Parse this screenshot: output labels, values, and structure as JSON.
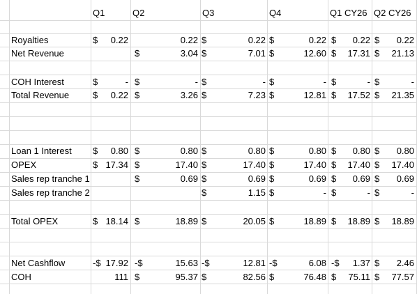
{
  "columns": [
    "Q1",
    "Q2",
    "Q3",
    "Q4",
    "Q1 CY26",
    "Q2 CY26"
  ],
  "rows": [
    {
      "label": "Royalties",
      "q1_cur": "$",
      "q1": "0.22",
      "q2_cur": "",
      "q2": "0.22",
      "q3_cur": "$",
      "q3": "0.22",
      "q4_cur": "$",
      "q4": "0.22",
      "c1_cur": "$",
      "c1": "0.22",
      "c2_cur": "$",
      "c2": "0.22"
    },
    {
      "label": "Net Revenue",
      "q1_cur": "",
      "q1": "",
      "q2_cur": "$",
      "q2": "3.04",
      "q3_cur": "$",
      "q3": "7.01",
      "q4_cur": "$",
      "q4": "12.60",
      "c1_cur": "$",
      "c1": "17.31",
      "c2_cur": "$",
      "c2": "21.13"
    },
    {
      "label": "COH Interest",
      "q1_cur": "$",
      "q1": "-",
      "q2_cur": "$",
      "q2": "-",
      "q3_cur": "$",
      "q3": "-",
      "q4_cur": "$",
      "q4": "-",
      "c1_cur": "$",
      "c1": "-",
      "c2_cur": "$",
      "c2": "-"
    },
    {
      "label": "Total Revenue",
      "q1_cur": "$",
      "q1": "0.22",
      "q2_cur": "$",
      "q2": "3.26",
      "q3_cur": "$",
      "q3": "7.23",
      "q4_cur": "$",
      "q4": "12.81",
      "c1_cur": "$",
      "c1": "17.52",
      "c2_cur": "$",
      "c2": "21.35"
    },
    {
      "label": "Loan 1 Interest",
      "q1_cur": "$",
      "q1": "0.80",
      "q2_cur": "$",
      "q2": "0.80",
      "q3_cur": "$",
      "q3": "0.80",
      "q4_cur": "$",
      "q4": "0.80",
      "c1_cur": "$",
      "c1": "0.80",
      "c2_cur": "$",
      "c2": "0.80"
    },
    {
      "label": "OPEX",
      "q1_cur": "$",
      "q1": "17.34",
      "q2_cur": "$",
      "q2": "17.40",
      "q3_cur": "$",
      "q3": "17.40",
      "q4_cur": "$",
      "q4": "17.40",
      "c1_cur": "$",
      "c1": "17.40",
      "c2_cur": "$",
      "c2": "17.40"
    },
    {
      "label": "Sales rep tranche 1",
      "q1_cur": "",
      "q1": "",
      "q2_cur": "$",
      "q2": "0.69",
      "q3_cur": "$",
      "q3": "0.69",
      "q4_cur": "$",
      "q4": "0.69",
      "c1_cur": "$",
      "c1": "0.69",
      "c2_cur": "$",
      "c2": "0.69"
    },
    {
      "label": "Sales rep tranche 2",
      "q1_cur": "",
      "q1": "",
      "q2_cur": "",
      "q2": "",
      "q3_cur": "$",
      "q3": "1.15",
      "q4_cur": "$",
      "q4": "-",
      "c1_cur": "$",
      "c1": "-",
      "c2_cur": "$",
      "c2": "-"
    },
    {
      "label": "Total OPEX",
      "q1_cur": "$",
      "q1": "18.14",
      "q2_cur": "$",
      "q2": "18.89",
      "q3_cur": "$",
      "q3": "20.05",
      "q4_cur": "$",
      "q4": "18.89",
      "c1_cur": "$",
      "c1": "18.89",
      "c2_cur": "$",
      "c2": "18.89"
    },
    {
      "label": "Net Cashflow",
      "q1_cur": "-$",
      "q1": "17.92",
      "q2_cur": "-$",
      "q2": "15.63",
      "q3_cur": "-$",
      "q3": "12.81",
      "q4_cur": "-$",
      "q4": "6.08",
      "c1_cur": "-$",
      "c1": "1.37",
      "c2_cur": "$",
      "c2": "2.46"
    },
    {
      "label": "COH",
      "q1_cur": "",
      "q1": "111",
      "q2_cur": "$",
      "q2": "95.37",
      "q3_cur": "$",
      "q3": "82.56",
      "q4_cur": "$",
      "q4": "76.48",
      "c1_cur": "$",
      "c1": "75.11",
      "c2_cur": "$",
      "c2": "77.57"
    }
  ]
}
